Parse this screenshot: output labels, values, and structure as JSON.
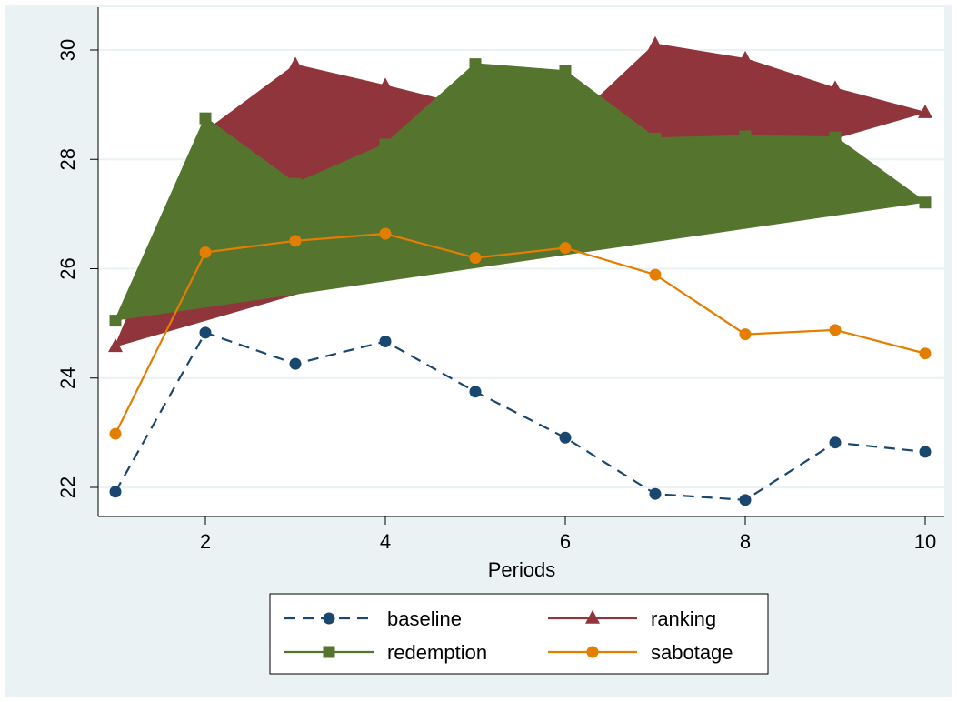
{
  "chart_data": {
    "type": "line",
    "title": "",
    "xlabel": "Periods",
    "ylabel": "",
    "x": [
      1,
      2,
      3,
      4,
      5,
      6,
      7,
      8,
      9,
      10
    ],
    "xlim": [
      1,
      10
    ],
    "ylim": [
      21.6,
      30.4
    ],
    "xticks": [
      2,
      4,
      6,
      8,
      10
    ],
    "xtick_labels": [
      "2",
      "4",
      "6",
      "8",
      "10"
    ],
    "yticks": [
      22,
      24,
      26,
      28,
      30
    ],
    "ytick_labels": [
      "22",
      "24",
      "26",
      "28",
      "30"
    ],
    "grid": "horizontal",
    "legend_position": "bottom",
    "series": [
      {
        "name": "baseline",
        "color": "#1a476f",
        "style": "dashed",
        "marker": "circle",
        "values": [
          21.92,
          24.83,
          24.26,
          24.67,
          23.75,
          22.91,
          21.88,
          21.77,
          22.82,
          22.65
        ]
      },
      {
        "name": "ranking",
        "color": "#90353b",
        "style": "solid",
        "marker": "triangle",
        "values": [
          24.57,
          28.5,
          29.72,
          29.34,
          28.93,
          28.55,
          30.1,
          29.83,
          29.29,
          28.85
        ]
      },
      {
        "name": "redemption",
        "color": "#55752f",
        "style": "solid",
        "marker": "square",
        "values": [
          25.05,
          28.75,
          27.55,
          28.27,
          29.74,
          29.61,
          28.38,
          28.42,
          28.4,
          27.21
        ]
      },
      {
        "name": "sabotage",
        "color": "#e37e00",
        "style": "solid",
        "marker": "circle",
        "values": [
          22.98,
          26.3,
          26.51,
          26.64,
          26.2,
          26.38,
          25.89,
          24.8,
          24.88,
          24.45
        ]
      }
    ]
  },
  "colors": {
    "background": "#eaf2f3",
    "plot": "#ffffff",
    "grid": "#eaf2f3"
  }
}
